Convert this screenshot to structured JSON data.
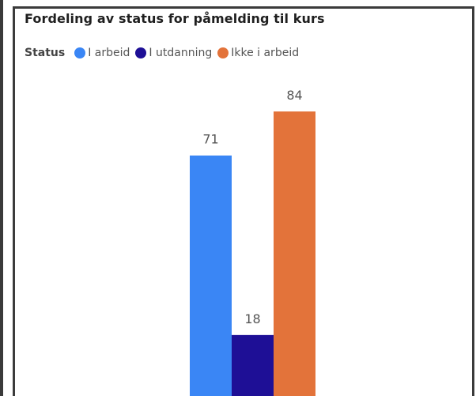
{
  "chart_data": {
    "type": "bar",
    "title": "Fordeling av status for påmelding til kurs",
    "legend_title": "Status",
    "categories": [
      "I arbeid",
      "I utdanning",
      "Ikke i arbeid"
    ],
    "values": [
      71,
      18,
      84
    ],
    "colors": [
      "#3a86f5",
      "#1e0f96",
      "#e3733a"
    ],
    "xlabel": "",
    "ylabel": "",
    "ylim": [
      0,
      84
    ],
    "grid": false,
    "legend_position": "top-left",
    "data_labels": true
  }
}
